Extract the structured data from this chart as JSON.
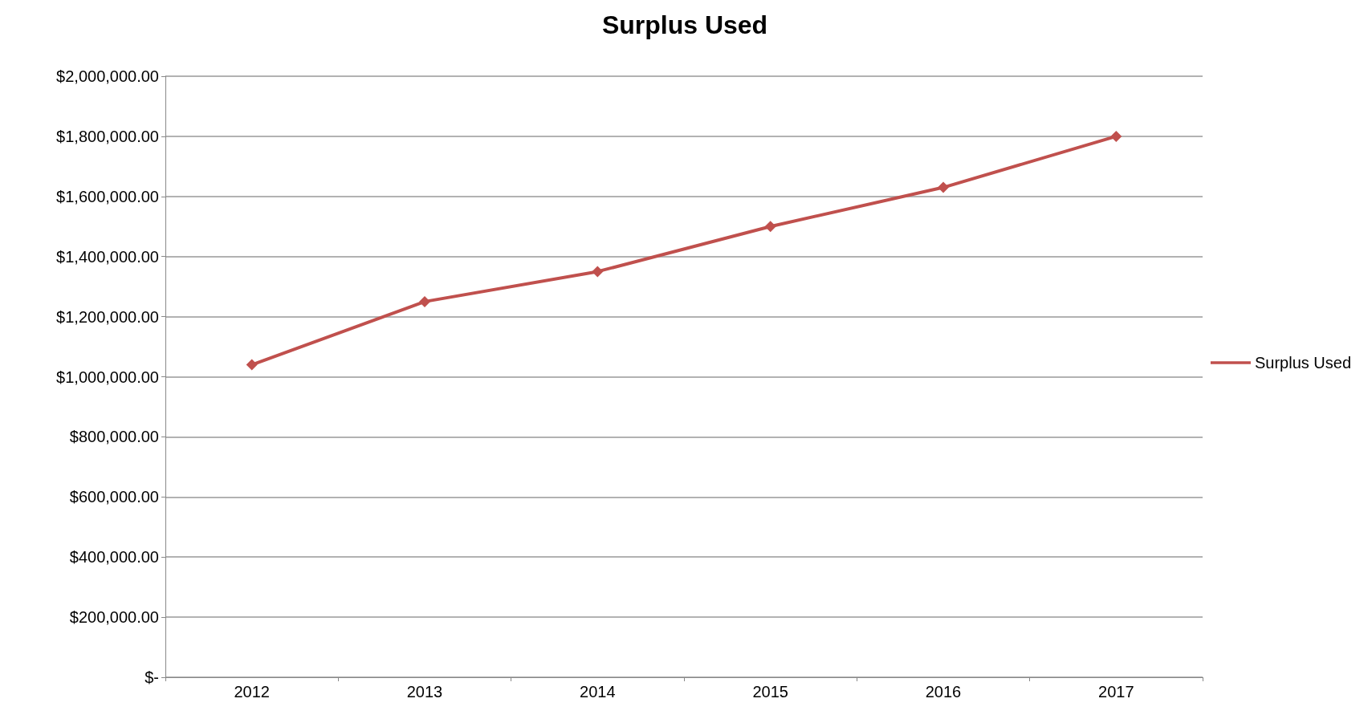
{
  "chart_data": {
    "type": "line",
    "title": "Surplus Used",
    "categories": [
      "2012",
      "2013",
      "2014",
      "2015",
      "2016",
      "2017"
    ],
    "series": [
      {
        "name": "Surplus Used",
        "color": "#c0504d",
        "values": [
          1040000,
          1250000,
          1350000,
          1500000,
          1630000,
          1800000
        ]
      }
    ],
    "ylim": [
      0,
      2000000
    ],
    "yticks": [
      {
        "value": 0,
        "label": "$-"
      },
      {
        "value": 200000,
        "label": "$200,000.00"
      },
      {
        "value": 400000,
        "label": "$400,000.00"
      },
      {
        "value": 600000,
        "label": "$600,000.00"
      },
      {
        "value": 800000,
        "label": "$800,000.00"
      },
      {
        "value": 1000000,
        "label": "$1,000,000.00"
      },
      {
        "value": 1200000,
        "label": "$1,200,000.00"
      },
      {
        "value": 1400000,
        "label": "$1,400,000.00"
      },
      {
        "value": 1600000,
        "label": "$1,600,000.00"
      },
      {
        "value": 1800000,
        "label": "$1,800,000.00"
      },
      {
        "value": 2000000,
        "label": "$2,000,000.00"
      }
    ],
    "grid": "y",
    "legend": "right",
    "marker": "diamond",
    "line_style": "solid"
  }
}
